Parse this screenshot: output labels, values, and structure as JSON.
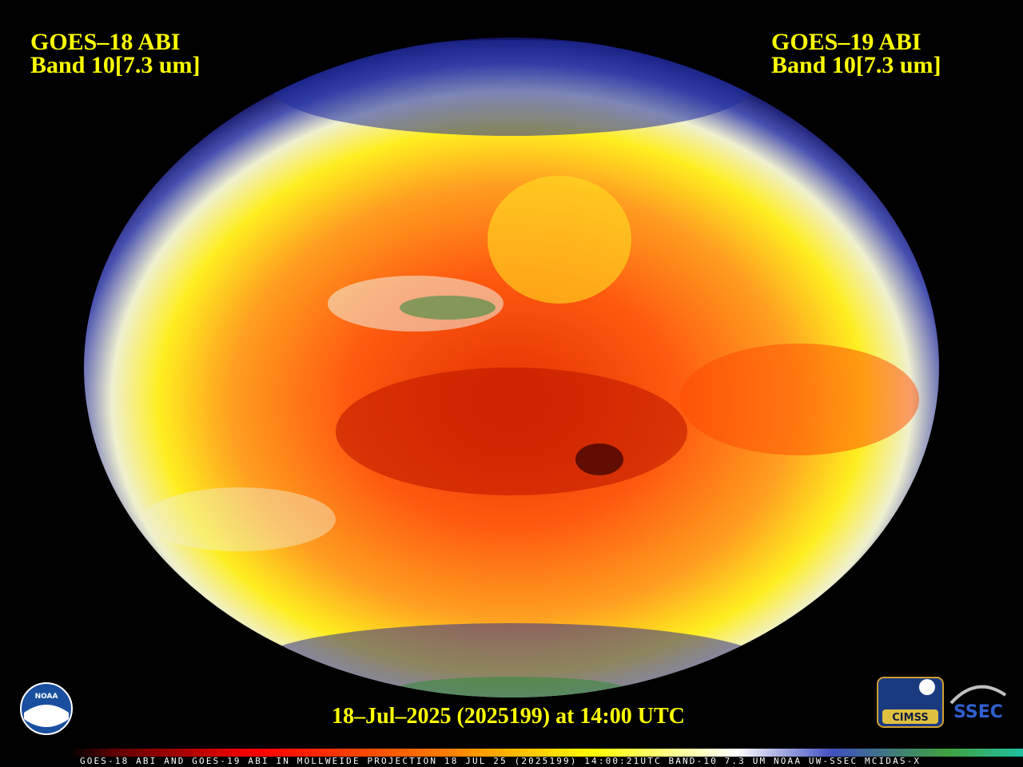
{
  "left_label": {
    "line1": "GOES–18 ABI",
    "line2": "Band 10[7.3 um]"
  },
  "right_label": {
    "line1": "GOES–19 ABI",
    "line2": "Band 10[7.3 um]"
  },
  "timestamp": "18–Jul–2025 (2025199) at 14:00 UTC",
  "footer": "GOES-18 ABI AND GOES-19 ABI IN MOLLWEIDE PROJECTION 18 JUL 25 (2025199) 14:00:21UTC BAND-10 7.3 UM NOAA UW-SSEC MCIDAS-X",
  "logos": {
    "noaa": "NOAA",
    "cimss": "CIMSS",
    "ssec": "SSEC"
  }
}
